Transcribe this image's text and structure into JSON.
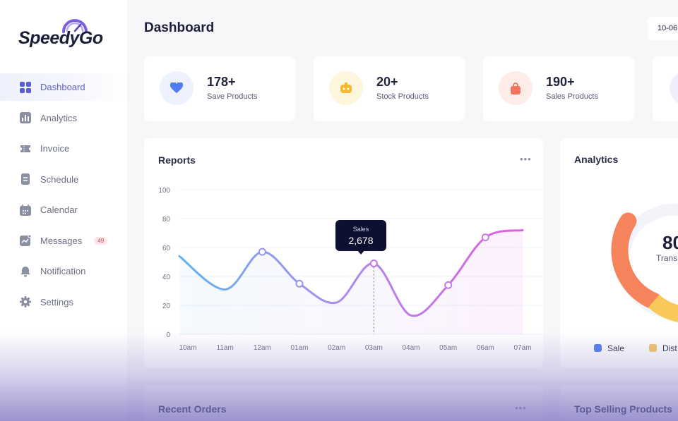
{
  "app": {
    "logo_text": "SpeedyGo"
  },
  "sidebar": {
    "items": [
      {
        "label": "Dashboard",
        "icon": "grid-icon",
        "active": true
      },
      {
        "label": "Analytics",
        "icon": "bar-chart-icon"
      },
      {
        "label": "Invoice",
        "icon": "ticket-icon"
      },
      {
        "label": "Schedule",
        "icon": "document-icon"
      },
      {
        "label": "Calendar",
        "icon": "calendar-icon"
      },
      {
        "label": "Messages",
        "icon": "messages-icon",
        "badge": "49"
      },
      {
        "label": "Notification",
        "icon": "bell-icon"
      },
      {
        "label": "Settings",
        "icon": "gear-icon"
      }
    ]
  },
  "header": {
    "title": "Dashboard",
    "date": "10-06"
  },
  "stats": [
    {
      "value": "178+",
      "label": "Save Products",
      "icon": "heart-icon",
      "color": "#4f7cf0",
      "bg": "#edf2fe"
    },
    {
      "value": "20+",
      "label": "Stock Products",
      "icon": "game-icon",
      "color": "#f5b82e",
      "bg": "#fef6dc"
    },
    {
      "value": "190+",
      "label": "Sales Products",
      "icon": "bag-icon",
      "color": "#f2735e",
      "bg": "#fdece8"
    }
  ],
  "reports": {
    "title": "Reports",
    "tooltip": {
      "label": "Sales",
      "value": "2,678"
    },
    "chart_data": {
      "type": "line",
      "categories": [
        "10am",
        "11am",
        "12am",
        "01am",
        "02am",
        "03am",
        "04am",
        "05am",
        "06am",
        "07am"
      ],
      "series": [
        {
          "name": "Sales",
          "values": [
            54,
            31,
            57,
            35,
            22,
            49,
            13,
            34,
            67,
            72
          ]
        }
      ],
      "ylim": [
        0,
        100
      ],
      "yticks": [
        "100",
        "80",
        "60",
        "40",
        "20",
        "0"
      ],
      "grid": true,
      "colors": [
        "#5fb3f0",
        "#a98df0",
        "#e05ee0"
      ]
    }
  },
  "analytics": {
    "title": "Analytics",
    "center_value": "80",
    "center_label": "Trans",
    "legend": [
      {
        "label": "Sale",
        "color": "#4f7cf0"
      },
      {
        "label": "Dist",
        "color": "#f2c566"
      }
    ]
  },
  "recent_orders": {
    "title": "Recent Orders"
  },
  "top_selling": {
    "title": "Top Selling Products"
  }
}
